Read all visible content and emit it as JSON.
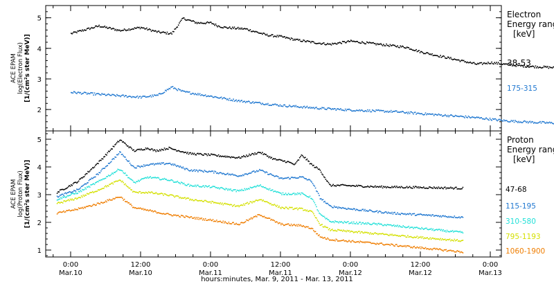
{
  "chart_data": [
    {
      "type": "scatter",
      "ylabel": [
        "ACE EPAM",
        "log(Electron Flux)",
        "[1/(cm²s ster MeV)]"
      ],
      "ylim": [
        1.3,
        5.4
      ],
      "yticks": [
        2,
        3,
        4,
        5
      ],
      "legend_title": [
        "Electron",
        "Energy ranges",
        "[keV]"
      ],
      "series": [
        {
          "name": "38-53",
          "color": "#000000",
          "x": [
            0,
            0.2,
            0.35,
            0.5,
            0.62,
            0.72,
            0.8,
            0.9,
            1.0,
            1.05,
            1.1,
            1.25,
            1.4,
            1.5,
            1.6,
            1.75,
            1.85,
            2.0,
            2.2,
            2.4,
            2.5,
            2.6,
            2.8,
            2.9,
            3.0,
            3.1,
            3.2,
            3.3,
            3.4,
            3.6,
            3.8
          ],
          "y": [
            4.5,
            4.75,
            4.6,
            4.7,
            4.55,
            4.5,
            5.0,
            4.85,
            4.85,
            4.75,
            4.7,
            4.65,
            4.45,
            4.4,
            4.3,
            4.2,
            4.15,
            4.25,
            4.15,
            4.05,
            3.9,
            3.8,
            3.6,
            3.5,
            3.55,
            3.5,
            3.45,
            3.42,
            3.4,
            3.35,
            3.32
          ]
        },
        {
          "name": "175-315",
          "color": "#1f77d0",
          "x": [
            0,
            0.3,
            0.5,
            0.62,
            0.72,
            0.8,
            1.0,
            1.2,
            1.5,
            1.8,
            2.0,
            2.3,
            2.6,
            2.9,
            3.1,
            3.3,
            3.6,
            3.8
          ],
          "y": [
            2.58,
            2.48,
            2.42,
            2.48,
            2.75,
            2.6,
            2.45,
            2.3,
            2.15,
            2.05,
            2.0,
            1.95,
            1.85,
            1.75,
            1.65,
            1.6,
            1.55,
            1.5
          ]
        }
      ]
    },
    {
      "type": "scatter",
      "ylabel": [
        "ACE EPAM",
        "log(Proton Flux)",
        "[1/(cm²s ster MeV)]"
      ],
      "ylim": [
        0.75,
        5.3
      ],
      "yticks": [
        1,
        2,
        3,
        4,
        5
      ],
      "legend_title": [
        "Proton",
        "Energy ranges",
        "[keV]"
      ],
      "xlabel": "hours:minutes, Mar.  9, 2011 - Mar. 13, 2011",
      "xticks": [
        {
          "x": 0,
          "time": "0:00",
          "date": "Mar.10"
        },
        {
          "x": 0.5,
          "time": "12:00",
          "date": "Mar.10"
        },
        {
          "x": 1,
          "time": "0:00",
          "date": "Mar.11"
        },
        {
          "x": 1.5,
          "time": "12:00",
          "date": "Mar.11"
        },
        {
          "x": 2,
          "time": "0:00",
          "date": "Mar.12"
        },
        {
          "x": 2.5,
          "time": "12:00",
          "date": "Mar.12"
        },
        {
          "x": 3,
          "time": "0:00",
          "date": "Mar.13"
        }
      ],
      "series": [
        {
          "name": "47-68",
          "color": "#000000",
          "x": [
            -0.1,
            0.05,
            0.2,
            0.35,
            0.4,
            0.45,
            0.55,
            0.6,
            0.7,
            0.85,
            1.0,
            1.2,
            1.35,
            1.45,
            1.5,
            1.55,
            1.6,
            1.65,
            1.72,
            1.78,
            1.85,
            1.95,
            2.2,
            2.5,
            2.8
          ],
          "y": [
            3.1,
            3.5,
            4.2,
            5.0,
            4.8,
            4.6,
            4.7,
            4.6,
            4.7,
            4.5,
            4.45,
            4.35,
            4.55,
            4.3,
            4.25,
            4.2,
            4.1,
            4.45,
            4.1,
            3.9,
            3.35,
            3.35,
            3.3,
            3.28,
            3.25
          ]
        },
        {
          "name": "115-195",
          "color": "#1f77d0",
          "x": [
            -0.1,
            0.05,
            0.2,
            0.35,
            0.45,
            0.55,
            0.7,
            0.85,
            1.0,
            1.2,
            1.35,
            1.5,
            1.65,
            1.72,
            1.78,
            1.85,
            2.0,
            2.3,
            2.8
          ],
          "y": [
            2.95,
            3.2,
            3.8,
            4.55,
            4.0,
            4.1,
            4.15,
            3.9,
            3.85,
            3.7,
            3.9,
            3.6,
            3.65,
            3.5,
            2.9,
            2.6,
            2.5,
            2.35,
            2.2
          ]
        },
        {
          "name": "310-580",
          "color": "#22e0d8",
          "x": [
            -0.1,
            0.05,
            0.2,
            0.35,
            0.45,
            0.55,
            0.7,
            0.85,
            1.0,
            1.2,
            1.35,
            1.5,
            1.65,
            1.72,
            1.78,
            1.85,
            2.2,
            2.8
          ],
          "y": [
            2.85,
            3.1,
            3.5,
            3.95,
            3.45,
            3.65,
            3.55,
            3.35,
            3.3,
            3.15,
            3.35,
            3.05,
            3.05,
            2.9,
            2.3,
            2.05,
            1.95,
            1.65
          ]
        },
        {
          "name": "795-1193",
          "color": "#d4e000",
          "x": [
            -0.1,
            0.05,
            0.2,
            0.35,
            0.45,
            0.55,
            0.7,
            0.85,
            1.0,
            1.2,
            1.35,
            1.5,
            1.65,
            1.72,
            1.78,
            1.85,
            2.2,
            2.8
          ],
          "y": [
            2.7,
            2.9,
            3.2,
            3.55,
            3.1,
            3.1,
            3.0,
            2.85,
            2.75,
            2.6,
            2.85,
            2.55,
            2.5,
            2.4,
            1.95,
            1.75,
            1.6,
            1.35
          ]
        },
        {
          "name": "1060-1900",
          "color": "#ef7d00",
          "x": [
            -0.1,
            0.05,
            0.2,
            0.35,
            0.45,
            0.55,
            0.7,
            0.85,
            1.0,
            1.2,
            1.35,
            1.5,
            1.65,
            1.72,
            1.78,
            1.85,
            2.2,
            2.8
          ],
          "y": [
            2.35,
            2.5,
            2.7,
            2.95,
            2.55,
            2.45,
            2.3,
            2.2,
            2.1,
            1.95,
            2.3,
            1.95,
            1.9,
            1.8,
            1.5,
            1.4,
            1.25,
            0.95
          ]
        }
      ]
    }
  ]
}
